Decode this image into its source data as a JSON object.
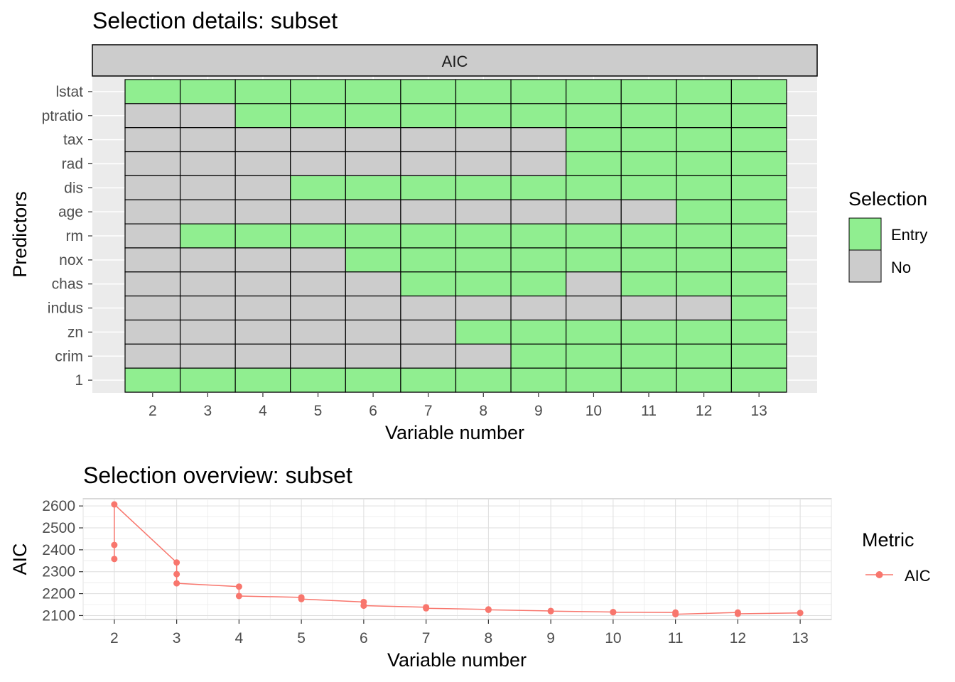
{
  "chart_data": [
    {
      "type": "heatmap",
      "title": "Selection details: subset",
      "facet": "AIC",
      "xlabel": "Variable number",
      "ylabel": "Predictors",
      "x": [
        2,
        3,
        4,
        5,
        6,
        7,
        8,
        9,
        10,
        11,
        12,
        13
      ],
      "y": [
        "lstat",
        "ptratio",
        "tax",
        "rad",
        "dis",
        "age",
        "rm",
        "nox",
        "chas",
        "indus",
        "zn",
        "crim",
        "1"
      ],
      "entry_from": {
        "lstat": 2,
        "ptratio": 4,
        "tax": 10,
        "rad": 10,
        "dis": 5,
        "age": 12,
        "rm": 3,
        "nox": 6,
        "chas": 7,
        "indus": 13,
        "zn": 8,
        "crim": 9,
        "1": 2
      },
      "exceptions_no": {
        "chas": [
          10
        ]
      },
      "legend": {
        "title": "Selection",
        "items": [
          {
            "label": "Entry",
            "color": "#90ee90"
          },
          {
            "label": "No",
            "color": "#cccccc"
          }
        ]
      }
    },
    {
      "type": "line",
      "title": "Selection overview: subset",
      "xlabel": "Variable number",
      "ylabel": "AIC",
      "x_ticks": [
        2,
        3,
        4,
        5,
        6,
        7,
        8,
        9,
        10,
        11,
        12,
        13
      ],
      "y_ticks": [
        2100,
        2200,
        2300,
        2400,
        2500,
        2600
      ],
      "xlim": [
        1.5,
        13.5
      ],
      "ylim": [
        2082,
        2633
      ],
      "grid": true,
      "series": [
        {
          "name": "AIC",
          "color": "#f8766d",
          "points": [
            {
              "x": 2,
              "y": 2358
            },
            {
              "x": 2,
              "y": 2422
            },
            {
              "x": 2,
              "y": 2607
            },
            {
              "x": 3,
              "y": 2342
            },
            {
              "x": 3,
              "y": 2289
            },
            {
              "x": 3,
              "y": 2247
            },
            {
              "x": 4,
              "y": 2232
            },
            {
              "x": 4,
              "y": 2189
            },
            {
              "x": 5,
              "y": 2183
            },
            {
              "x": 5,
              "y": 2175
            },
            {
              "x": 6,
              "y": 2162
            },
            {
              "x": 6,
              "y": 2145
            },
            {
              "x": 7,
              "y": 2138
            },
            {
              "x": 7,
              "y": 2133
            },
            {
              "x": 8,
              "y": 2128
            },
            {
              "x": 8,
              "y": 2126
            },
            {
              "x": 9,
              "y": 2121
            },
            {
              "x": 9,
              "y": 2120
            },
            {
              "x": 10,
              "y": 2116
            },
            {
              "x": 10,
              "y": 2115
            },
            {
              "x": 11,
              "y": 2114
            },
            {
              "x": 11,
              "y": 2106
            },
            {
              "x": 12,
              "y": 2114
            },
            {
              "x": 12,
              "y": 2108
            },
            {
              "x": 13,
              "y": 2112
            }
          ]
        }
      ],
      "legend": {
        "title": "Metric",
        "items": [
          {
            "label": "AIC",
            "color": "#f8766d"
          }
        ]
      }
    }
  ]
}
